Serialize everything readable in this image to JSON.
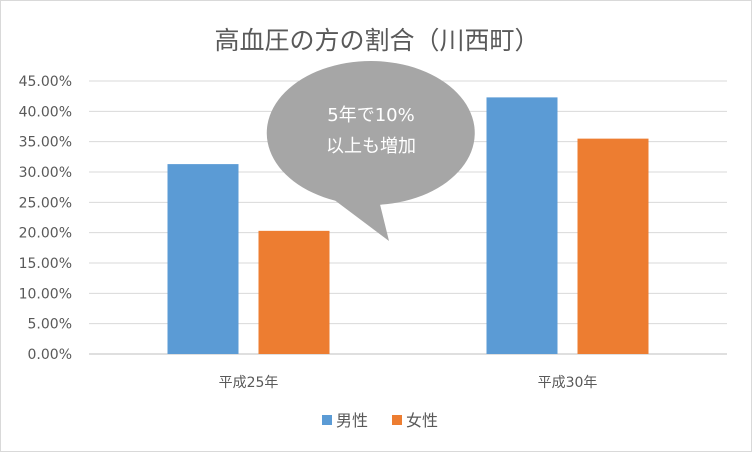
{
  "chart_data": {
    "type": "bar",
    "title": "高血圧の方の割合（川西町）",
    "categories": [
      "平成25年",
      "平成30年"
    ],
    "series": [
      {
        "name": "男性",
        "values": [
          31.3,
          42.3
        ],
        "color": "#5b9bd5"
      },
      {
        "name": "女性",
        "values": [
          20.3,
          35.5
        ],
        "color": "#ed7d31"
      }
    ],
    "ylim": [
      0,
      45
    ],
    "yticks": [
      0,
      5,
      10,
      15,
      20,
      25,
      30,
      35,
      40,
      45
    ],
    "y_tick_labels": [
      "0.00%",
      "5.00%",
      "10.00%",
      "15.00%",
      "20.00%",
      "25.00%",
      "30.00%",
      "35.00%",
      "40.00%",
      "45.00%"
    ],
    "grid": true,
    "legend_position": "bottom",
    "annotation": {
      "lines": [
        "5年で10%",
        "以上も増加"
      ],
      "color": "#a6a6a6"
    }
  }
}
